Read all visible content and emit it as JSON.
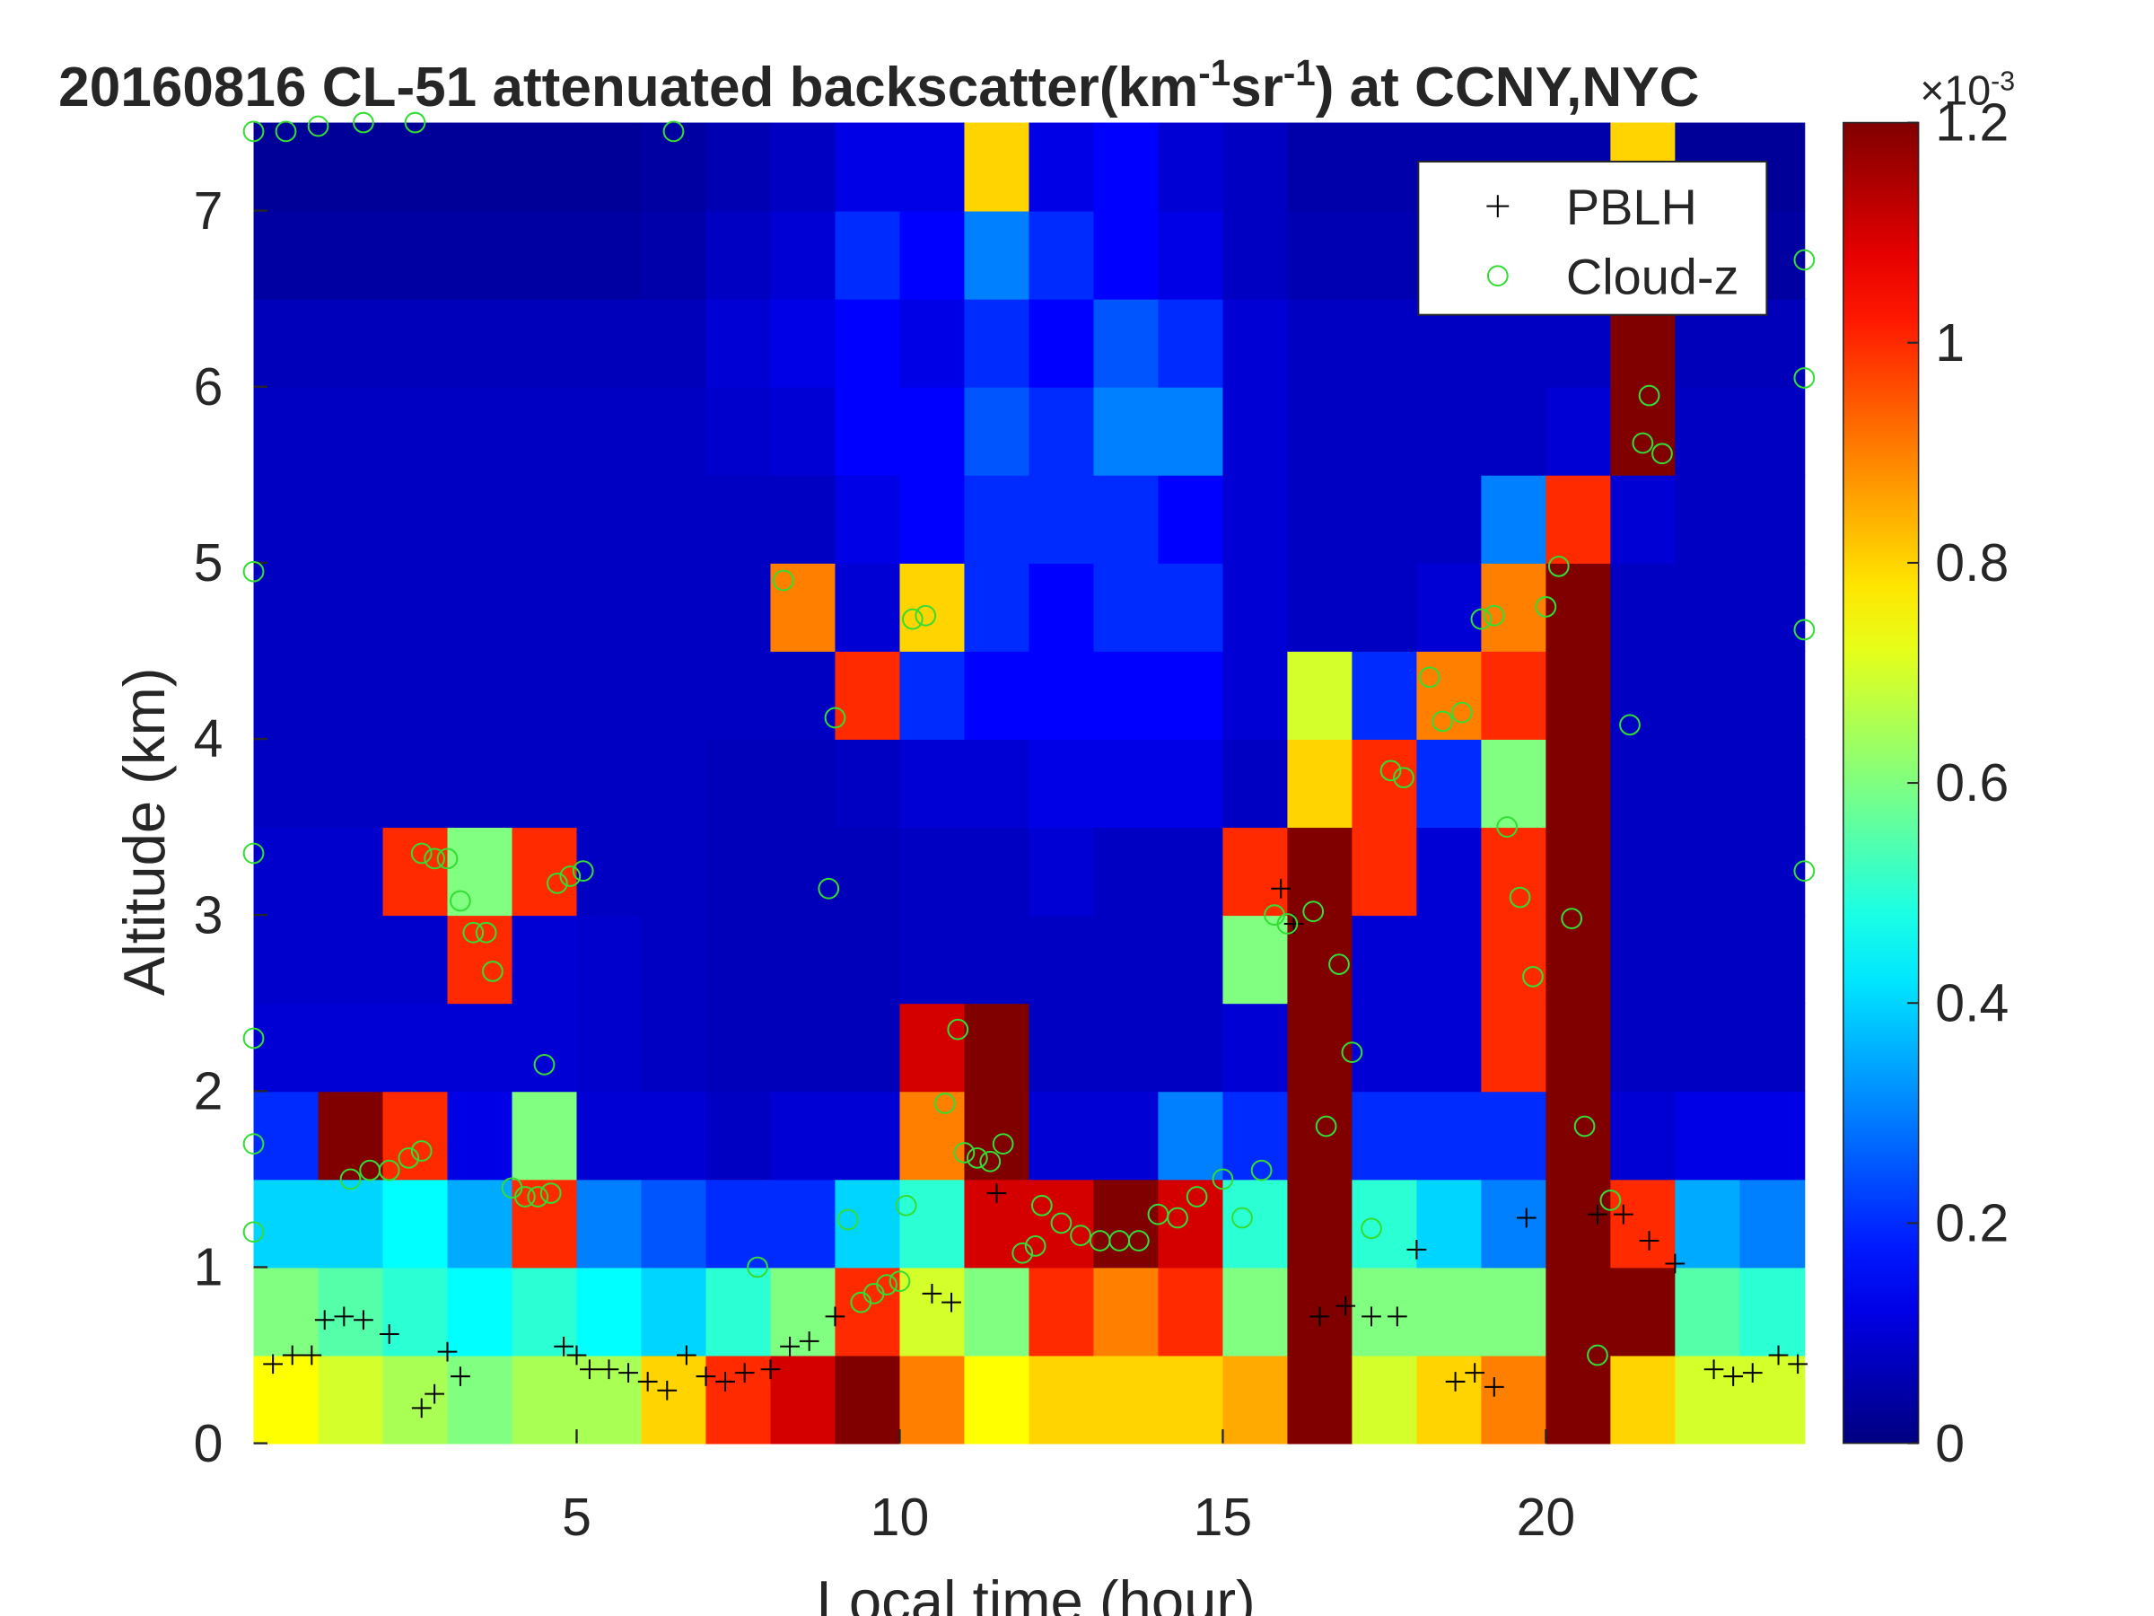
{
  "chart_data": {
    "type": "heatmap",
    "title": [
      {
        "text": "20160816  CL-51 attenuated backscatter(km",
        "superscript": false
      },
      {
        "text": "-1",
        "superscript": true
      },
      {
        "text": "sr",
        "superscript": false
      },
      {
        "text": "-1",
        "superscript": true
      },
      {
        "text": ") at CCNY,NYC",
        "superscript": false
      }
    ],
    "x_label": "Local time (hour)",
    "y_label": "Altitude (km)",
    "xlim": [
      0,
      24
    ],
    "xticks": [
      5,
      10,
      15,
      20
    ],
    "ylim": [
      0,
      7.5
    ],
    "yticks": [
      0,
      1,
      2,
      3,
      4,
      5,
      6,
      7
    ],
    "colorbar": {
      "colormap": "jet",
      "clim": [
        0,
        1.2
      ],
      "cticks": [
        0,
        0.2,
        0.4,
        0.6,
        0.8,
        1,
        1.2
      ],
      "exponent_label": [
        {
          "text": "×10",
          "superscript": false
        },
        {
          "text": "-3",
          "superscript": true
        }
      ]
    },
    "heatmap": {
      "z": [
        [
          0.75,
          0.6,
          0.4,
          0.2,
          0.1,
          0.09,
          0.09,
          0.08,
          0.08,
          0.08,
          0.08,
          0.08,
          0.07,
          0.04,
          0.03
        ],
        [
          0.7,
          0.55,
          0.4,
          1.2,
          0.1,
          0.09,
          0.09,
          0.08,
          0.08,
          0.08,
          0.08,
          0.08,
          0.07,
          0.04,
          0.03
        ],
        [
          0.65,
          0.5,
          0.45,
          1.0,
          0.1,
          0.09,
          1.0,
          0.08,
          0.08,
          0.08,
          0.08,
          0.08,
          0.07,
          0.04,
          0.03
        ],
        [
          0.6,
          0.45,
          0.35,
          0.12,
          0.1,
          1.0,
          0.6,
          0.08,
          0.08,
          0.08,
          0.08,
          0.08,
          0.07,
          0.04,
          0.03
        ],
        [
          0.65,
          0.5,
          1.0,
          0.6,
          0.1,
          0.1,
          1.0,
          0.08,
          0.08,
          0.08,
          0.08,
          0.08,
          0.07,
          0.04,
          0.03
        ],
        [
          0.65,
          0.45,
          0.3,
          0.1,
          0.09,
          0.09,
          0.08,
          0.08,
          0.08,
          0.08,
          0.08,
          0.08,
          0.07,
          0.04,
          0.03
        ],
        [
          0.8,
          0.4,
          0.25,
          0.1,
          0.08,
          0.08,
          0.08,
          0.08,
          0.08,
          0.08,
          0.08,
          0.08,
          0.07,
          0.05,
          0.04
        ],
        [
          1.0,
          0.5,
          0.2,
          0.08,
          0.07,
          0.07,
          0.07,
          0.07,
          0.08,
          0.08,
          0.08,
          0.09,
          0.1,
          0.08,
          0.06
        ],
        [
          1.1,
          0.6,
          0.2,
          0.1,
          0.07,
          0.07,
          0.07,
          0.07,
          0.08,
          0.9,
          0.08,
          0.1,
          0.12,
          0.1,
          0.08
        ],
        [
          1.2,
          1.0,
          0.4,
          0.1,
          0.07,
          0.07,
          0.07,
          0.08,
          1.0,
          0.1,
          0.12,
          0.15,
          0.15,
          0.2,
          0.12
        ],
        [
          0.9,
          0.7,
          0.5,
          0.9,
          1.1,
          0.08,
          0.08,
          0.1,
          0.2,
          0.8,
          0.15,
          0.15,
          0.12,
          0.15,
          0.12
        ],
        [
          0.75,
          0.6,
          1.1,
          1.2,
          1.2,
          0.08,
          0.08,
          0.1,
          0.15,
          0.2,
          0.2,
          0.25,
          0.2,
          0.3,
          0.8
        ],
        [
          0.8,
          1.0,
          1.1,
          0.1,
          0.08,
          0.08,
          0.1,
          0.12,
          0.15,
          0.15,
          0.2,
          0.2,
          0.15,
          0.2,
          0.12
        ],
        [
          0.8,
          0.9,
          1.2,
          0.1,
          0.08,
          0.08,
          0.08,
          0.12,
          0.15,
          0.2,
          0.2,
          0.3,
          0.25,
          0.15,
          0.15
        ],
        [
          0.8,
          1.0,
          1.1,
          0.3,
          0.08,
          0.08,
          0.08,
          0.12,
          0.15,
          0.2,
          0.15,
          0.3,
          0.2,
          0.12,
          0.1
        ],
        [
          0.85,
          0.6,
          0.5,
          0.2,
          0.1,
          0.6,
          1.0,
          0.08,
          0.1,
          0.1,
          0.1,
          0.1,
          0.1,
          0.08,
          0.08
        ],
        [
          1.2,
          1.2,
          1.2,
          1.2,
          1.2,
          1.2,
          1.2,
          0.8,
          0.7,
          0.08,
          0.08,
          0.08,
          0.08,
          0.06,
          0.05
        ],
        [
          0.7,
          0.6,
          0.5,
          0.2,
          0.1,
          0.1,
          1.0,
          1.0,
          0.2,
          0.08,
          0.08,
          0.08,
          0.08,
          0.06,
          0.05
        ],
        [
          0.8,
          0.6,
          0.4,
          0.2,
          0.1,
          0.1,
          0.1,
          0.2,
          0.9,
          0.1,
          0.08,
          0.08,
          0.08,
          0.06,
          0.05
        ],
        [
          0.9,
          0.6,
          0.3,
          0.2,
          1.0,
          1.0,
          1.0,
          0.6,
          1.0,
          0.9,
          0.3,
          0.08,
          0.08,
          0.06,
          0.05
        ],
        [
          1.2,
          1.2,
          1.2,
          1.2,
          1.2,
          1.2,
          1.2,
          1.2,
          1.2,
          1.2,
          1.0,
          0.1,
          0.08,
          0.06,
          0.05
        ],
        [
          0.8,
          1.2,
          1.0,
          0.1,
          0.08,
          0.08,
          0.08,
          0.08,
          0.08,
          0.08,
          0.1,
          1.2,
          1.2,
          1.2,
          0.8
        ],
        [
          0.7,
          0.55,
          0.35,
          0.12,
          0.08,
          0.08,
          0.08,
          0.08,
          0.08,
          0.08,
          0.08,
          0.08,
          0.07,
          0.04,
          0.03
        ],
        [
          0.7,
          0.5,
          0.3,
          0.12,
          0.08,
          0.08,
          0.08,
          0.08,
          0.08,
          0.08,
          0.08,
          0.08,
          0.07,
          0.04,
          0.03
        ]
      ]
    },
    "legend": "upper right",
    "series": [
      {
        "name": "PBLH",
        "marker": "plus",
        "color": "#000000",
        "x": [
          0.3,
          0.6,
          0.9,
          1.1,
          1.4,
          1.7,
          2.1,
          2.6,
          2.8,
          3.0,
          3.2,
          4.8,
          5.0,
          5.2,
          5.5,
          5.8,
          6.1,
          6.4,
          6.7,
          7.0,
          7.3,
          7.6,
          8.0,
          8.3,
          8.6,
          9.0,
          10.5,
          10.8,
          11.5,
          15.9,
          16.1,
          16.5,
          16.9,
          17.3,
          17.7,
          18.0,
          18.6,
          18.9,
          19.2,
          19.7,
          20.8,
          21.2,
          21.6,
          22.0,
          22.6,
          22.9,
          23.2,
          23.6,
          23.9
        ],
        "values": [
          0.45,
          0.5,
          0.5,
          0.7,
          0.72,
          0.7,
          0.62,
          0.2,
          0.28,
          0.52,
          0.38,
          0.55,
          0.5,
          0.42,
          0.42,
          0.4,
          0.35,
          0.3,
          0.5,
          0.38,
          0.35,
          0.4,
          0.42,
          0.55,
          0.58,
          0.72,
          0.85,
          0.8,
          1.42,
          3.15,
          2.95,
          0.72,
          0.78,
          0.72,
          0.72,
          1.1,
          0.35,
          0.4,
          0.32,
          1.28,
          1.3,
          1.3,
          1.15,
          1.02,
          0.42,
          0.38,
          0.4,
          0.5,
          0.45
        ]
      },
      {
        "name": "Cloud-z",
        "marker": "circle",
        "color": "#33dd33",
        "x": [
          0.0,
          0.5,
          1.0,
          1.7,
          2.5,
          6.5,
          1.5,
          1.8,
          2.1,
          2.4,
          2.6,
          2.6,
          2.8,
          3.0,
          3.2,
          3.4,
          3.6,
          3.7,
          4.0,
          4.2,
          4.4,
          4.6,
          4.5,
          4.7,
          4.9,
          5.1,
          7.8,
          8.2,
          8.9,
          9.0,
          9.2,
          9.4,
          9.6,
          9.8,
          10.0,
          10.1,
          10.2,
          10.4,
          10.7,
          10.9,
          11.0,
          11.2,
          11.4,
          11.6,
          11.9,
          12.1,
          12.2,
          12.5,
          12.8,
          13.1,
          13.4,
          13.7,
          14.0,
          14.3,
          14.6,
          15.0,
          15.3,
          15.6,
          15.8,
          16.0,
          16.4,
          16.6,
          16.8,
          17.0,
          17.3,
          17.6,
          17.8,
          18.2,
          18.4,
          18.7,
          19.0,
          19.2,
          19.4,
          19.6,
          19.8,
          20.0,
          20.2,
          20.4,
          20.6,
          20.8,
          21.0,
          21.3,
          21.5,
          21.6,
          21.8,
          24.0,
          24.0,
          24.0,
          24.0,
          0.0,
          0.0,
          0.0,
          0.0,
          0.0
        ],
        "values": [
          7.45,
          7.45,
          7.48,
          7.5,
          7.5,
          7.45,
          1.5,
          1.55,
          1.55,
          1.62,
          1.66,
          3.35,
          3.32,
          3.32,
          3.08,
          2.9,
          2.9,
          2.68,
          1.45,
          1.4,
          1.4,
          1.42,
          2.15,
          3.18,
          3.22,
          3.25,
          1.0,
          4.9,
          3.15,
          4.12,
          1.27,
          0.8,
          0.85,
          0.9,
          0.92,
          1.35,
          4.68,
          4.7,
          1.93,
          2.35,
          1.65,
          1.62,
          1.6,
          1.7,
          1.08,
          1.12,
          1.35,
          1.25,
          1.18,
          1.15,
          1.15,
          1.15,
          1.3,
          1.28,
          1.4,
          1.5,
          1.28,
          1.55,
          3.0,
          2.95,
          3.02,
          1.8,
          2.72,
          2.22,
          1.22,
          3.82,
          3.78,
          4.35,
          4.1,
          4.15,
          4.68,
          4.7,
          3.5,
          3.1,
          2.65,
          4.75,
          4.98,
          2.98,
          1.8,
          0.5,
          1.38,
          4.08,
          5.68,
          5.95,
          5.62,
          6.72,
          6.05,
          4.62,
          3.25,
          4.95,
          3.35,
          2.3,
          1.7,
          1.2
        ]
      }
    ]
  }
}
